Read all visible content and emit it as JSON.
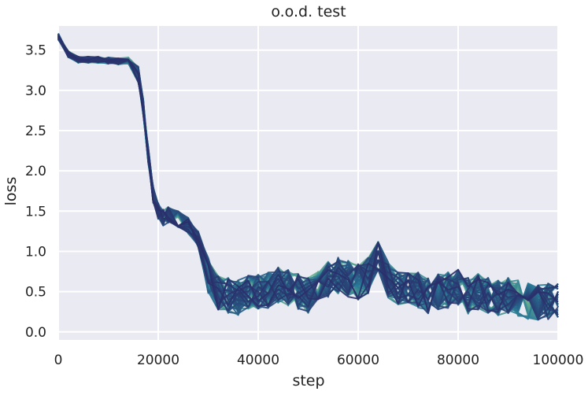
{
  "chart_data": {
    "type": "line",
    "title": "o.o.d. test",
    "xlabel": "step",
    "ylabel": "loss",
    "xlim": [
      0,
      100000
    ],
    "ylim": [
      -0.1,
      3.8
    ],
    "x_ticks": [
      0,
      20000,
      40000,
      60000,
      80000,
      100000
    ],
    "y_ticks": [
      0.0,
      0.5,
      1.0,
      1.5,
      2.0,
      2.5,
      3.0,
      3.5
    ],
    "x_tick_labels": [
      "0",
      "20000",
      "40000",
      "60000",
      "80000",
      "100000"
    ],
    "y_tick_labels": [
      "0.0",
      "0.5",
      "1.0",
      "1.5",
      "2.0",
      "2.5",
      "3.0",
      "3.5"
    ],
    "grid": true,
    "series_color_range": [
      "#6fb58e",
      "#2a2f6b"
    ],
    "x": [
      0,
      2000,
      4000,
      6000,
      8000,
      10000,
      12000,
      14000,
      16000,
      17000,
      18000,
      19000,
      20000,
      21000,
      22000,
      24000,
      26000,
      28000,
      30000,
      32000,
      34000,
      36000,
      38000,
      40000,
      42000,
      44000,
      46000,
      48000,
      50000,
      52000,
      54000,
      56000,
      58000,
      60000,
      62000,
      64000,
      66000,
      68000,
      70000,
      72000,
      74000,
      76000,
      78000,
      80000,
      82000,
      84000,
      86000,
      88000,
      90000,
      92000,
      94000,
      96000,
      98000,
      100000
    ],
    "mean_curve": [
      3.67,
      3.45,
      3.38,
      3.38,
      3.38,
      3.37,
      3.36,
      3.37,
      3.2,
      2.8,
      2.2,
      1.7,
      1.5,
      1.42,
      1.45,
      1.4,
      1.32,
      1.15,
      0.7,
      0.5,
      0.45,
      0.42,
      0.48,
      0.5,
      0.52,
      0.58,
      0.55,
      0.5,
      0.45,
      0.55,
      0.65,
      0.7,
      0.66,
      0.62,
      0.7,
      0.95,
      0.65,
      0.55,
      0.58,
      0.52,
      0.45,
      0.5,
      0.52,
      0.55,
      0.45,
      0.5,
      0.45,
      0.42,
      0.45,
      0.42,
      0.38,
      0.36,
      0.38,
      0.4
    ],
    "series_count": 60
  }
}
